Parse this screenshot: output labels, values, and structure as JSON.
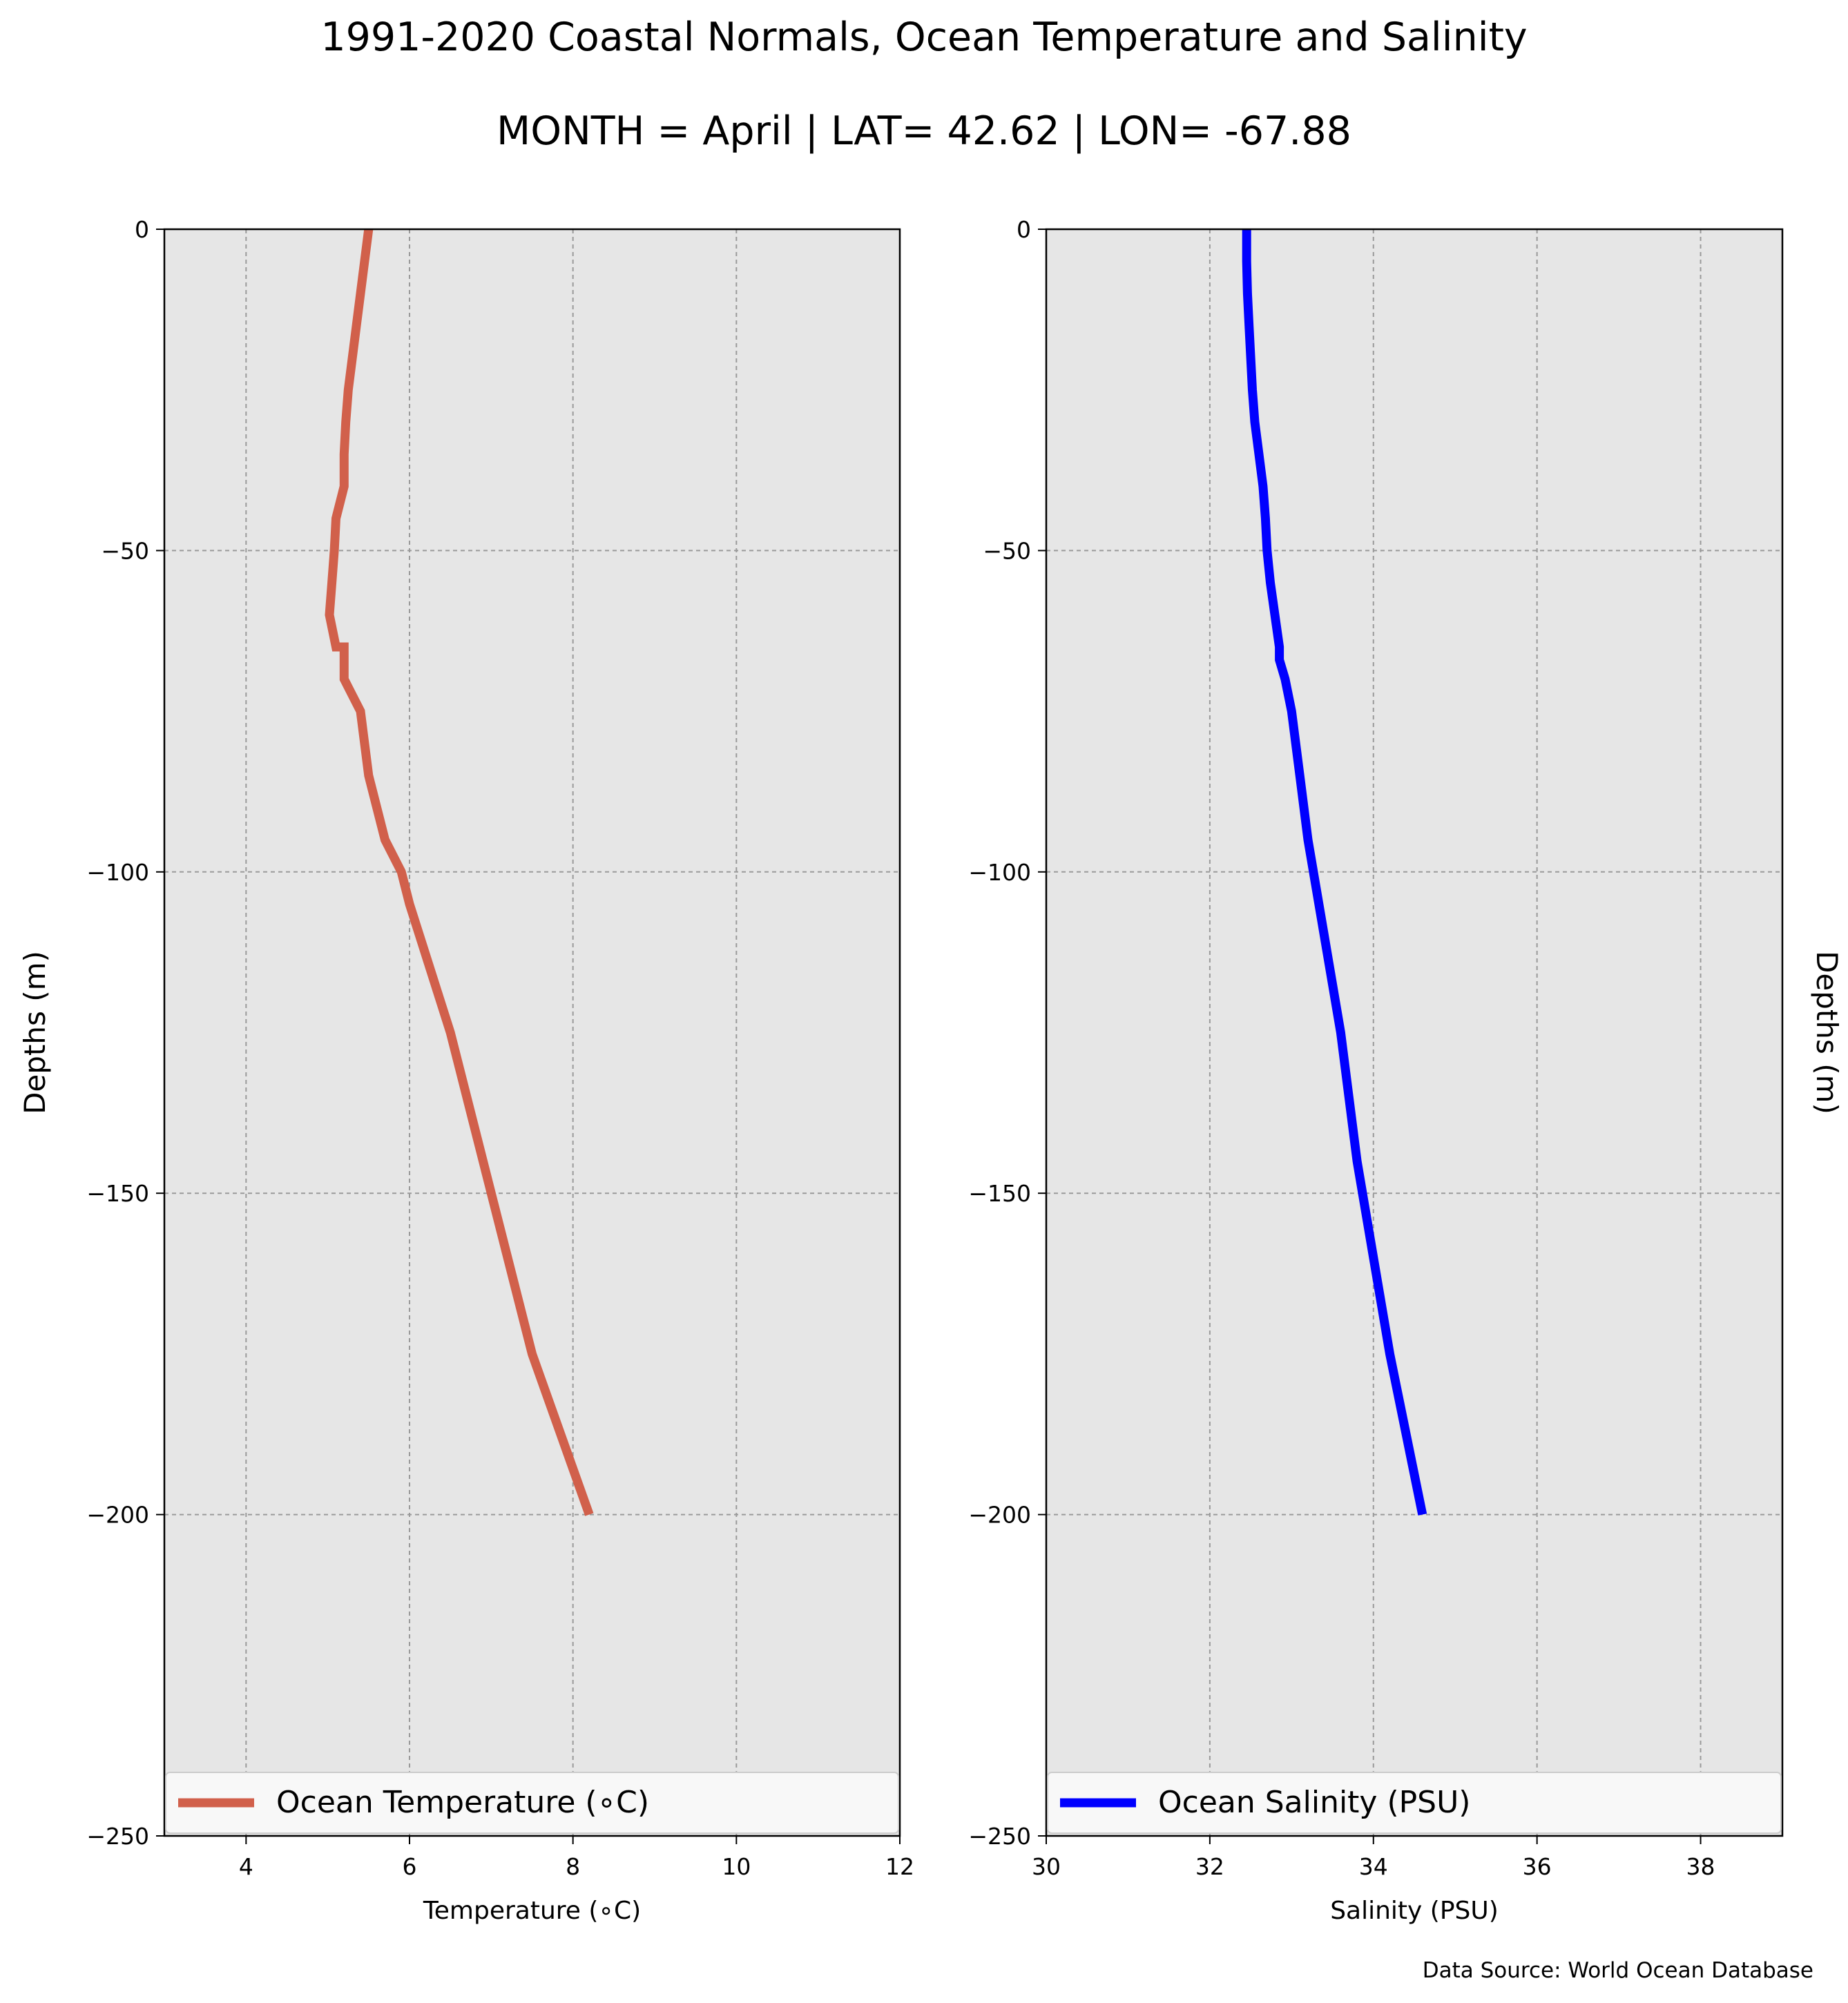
{
  "title": "1991-2020 Coastal Normals, Ocean Temperature and Salinity",
  "subtitle": "MONTH = April | LAT= 42.62 | LON= -67.88",
  "source": "Data Source: World Ocean Database",
  "colors": {
    "temperature": "#d1604b",
    "salinity": "#0000ff",
    "plot_bg": "#e6e6e6",
    "grid": "#9a9a9a"
  },
  "chart_data": [
    {
      "type": "line",
      "xlabel": "Temperature (∘C)",
      "ylabel": "Depths (m)",
      "xlim": [
        3,
        12
      ],
      "ylim": [
        -250,
        0
      ],
      "xticks": [
        4,
        6,
        8,
        10,
        12
      ],
      "xtick_labels": [
        "4",
        "6",
        "8",
        "10",
        "12"
      ],
      "yticks": [
        0,
        -50,
        -100,
        -150,
        -200,
        -250
      ],
      "ytick_labels": [
        "0",
        "−50",
        "−100",
        "−150",
        "−200",
        "−250"
      ],
      "grid": true,
      "legend_position": "bottom",
      "series": [
        {
          "name": "Ocean Temperature (∘C)",
          "color": "#d1604b",
          "x": [
            5.5,
            5.45,
            5.4,
            5.35,
            5.3,
            5.25,
            5.22,
            5.2,
            5.2,
            5.1,
            5.08,
            5.05,
            5.02,
            5.1,
            5.2,
            5.2,
            5.4,
            5.5,
            5.7,
            5.9,
            6.0,
            6.5,
            7.0,
            7.5,
            8.2
          ],
          "y": [
            0,
            -5,
            -10,
            -15,
            -20,
            -25,
            -30,
            -35,
            -40,
            -45,
            -50,
            -55,
            -60,
            -65,
            -65,
            -70,
            -75,
            -85,
            -95,
            -100,
            -105,
            -125,
            -150,
            -175,
            -200
          ]
        }
      ]
    },
    {
      "type": "line",
      "xlabel": "Salinity (PSU)",
      "ylabel": "Depths (m)",
      "xlim": [
        30,
        39
      ],
      "ylim": [
        -250,
        0
      ],
      "xticks": [
        30,
        32,
        34,
        36,
        38
      ],
      "xtick_labels": [
        "30",
        "32",
        "34",
        "36",
        "38"
      ],
      "yticks": [
        0,
        -50,
        -100,
        -150,
        -200,
        -250
      ],
      "ytick_labels": [
        "0",
        "−50",
        "−100",
        "−150",
        "−200",
        "−250"
      ],
      "grid": true,
      "legend_position": "bottom",
      "series": [
        {
          "name": "Ocean Salinity (PSU)",
          "color": "#0000ff",
          "x": [
            32.45,
            32.45,
            32.46,
            32.48,
            32.5,
            32.52,
            32.55,
            32.6,
            32.65,
            32.68,
            32.7,
            32.74,
            32.85,
            32.85,
            32.92,
            33.0,
            33.1,
            33.2,
            33.4,
            33.6,
            33.8,
            34.0,
            34.2,
            34.6
          ],
          "y": [
            0,
            -5,
            -10,
            -15,
            -20,
            -25,
            -30,
            -35,
            -40,
            -45,
            -50,
            -55,
            -65,
            -67,
            -70,
            -75,
            -85,
            -95,
            -110,
            -125,
            -145,
            -160,
            -175,
            -200
          ]
        }
      ]
    }
  ]
}
